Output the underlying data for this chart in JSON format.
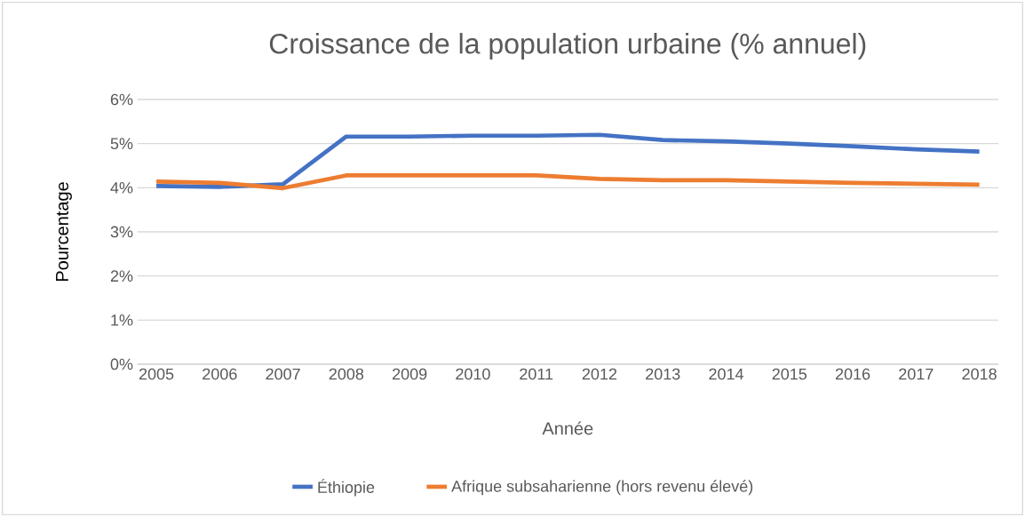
{
  "chart_data": {
    "type": "line",
    "title": "Croissance de la population urbaine (% annuel)",
    "xlabel": "Année",
    "ylabel": "Pourcentage",
    "categories": [
      "2005",
      "2006",
      "2007",
      "2008",
      "2009",
      "2010",
      "2011",
      "2012",
      "2013",
      "2014",
      "2015",
      "2016",
      "2017",
      "2018"
    ],
    "series": [
      {
        "name": "Éthiopie",
        "color": "#4472c4",
        "values": [
          4.04,
          4.02,
          4.08,
          5.16,
          5.16,
          5.18,
          5.18,
          5.2,
          5.08,
          5.05,
          5.0,
          4.94,
          4.87,
          4.82
        ]
      },
      {
        "name": "Afrique subsaharienne (hors revenu élevé)",
        "color": "#ed7d31",
        "values": [
          4.14,
          4.11,
          3.99,
          4.28,
          4.28,
          4.28,
          4.28,
          4.2,
          4.17,
          4.17,
          4.14,
          4.11,
          4.09,
          4.07
        ]
      }
    ],
    "ylim": [
      0,
      6
    ],
    "yticks": [
      {
        "value": 0,
        "label": "0%"
      },
      {
        "value": 1,
        "label": "1%"
      },
      {
        "value": 2,
        "label": "2%"
      },
      {
        "value": 3,
        "label": "3%"
      },
      {
        "value": 4,
        "label": "4%"
      },
      {
        "value": 5,
        "label": "5%"
      },
      {
        "value": 6,
        "label": "6%"
      }
    ],
    "grid": "y",
    "legend": "bottom"
  }
}
